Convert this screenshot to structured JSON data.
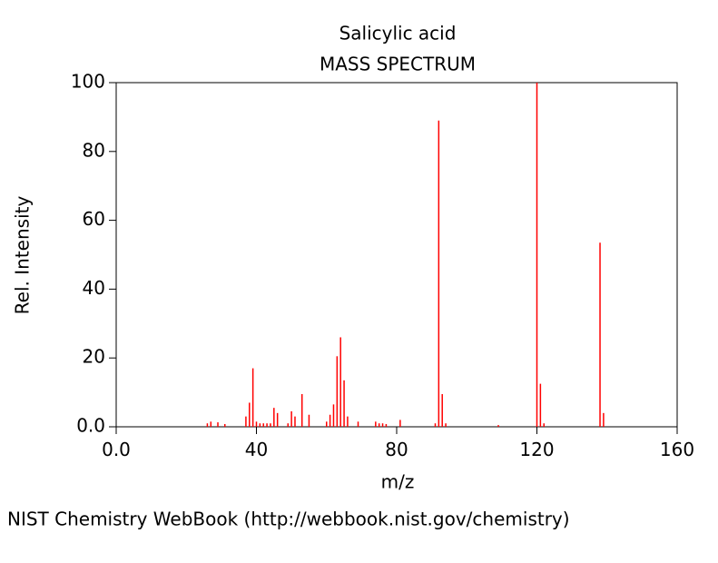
{
  "chart_data": {
    "type": "stem",
    "title": "Salicylic acid",
    "subtitle": "MASS SPECTRUM",
    "x_label": "m/z",
    "y_label": "Rel. Intensity",
    "color": "#ff0000",
    "x": [
      26,
      27,
      29,
      31,
      37,
      38,
      39,
      40,
      41,
      42,
      43,
      44,
      45,
      46,
      49,
      50,
      51,
      53,
      55,
      60,
      61,
      62,
      63,
      64,
      65,
      66,
      69,
      74,
      75,
      76,
      77,
      81,
      91,
      92,
      93,
      94,
      109,
      120,
      121,
      122,
      138,
      139
    ],
    "values": [
      1,
      1.5,
      1.3,
      0.8,
      3,
      7,
      17,
      1.5,
      1,
      1,
      1,
      1,
      5.5,
      4,
      1,
      4.5,
      3,
      9.5,
      3.5,
      1.5,
      3.5,
      6.5,
      20.5,
      26,
      13.5,
      3,
      1.5,
      1.5,
      1,
      1,
      0.8,
      2,
      1,
      89,
      9.5,
      1,
      0.5,
      100,
      12.5,
      1,
      53.5,
      4
    ],
    "xlim": [
      0,
      160
    ],
    "xticks": [
      {
        "value": 0,
        "label": "0.0"
      },
      40,
      80,
      120,
      160
    ],
    "ylim": [
      0,
      100
    ],
    "yticks": [
      {
        "value": 0,
        "label": "0.0"
      },
      20,
      40,
      60,
      80,
      100
    ]
  },
  "footer": "NIST Chemistry WebBook (http://webbook.nist.gov/chemistry)"
}
